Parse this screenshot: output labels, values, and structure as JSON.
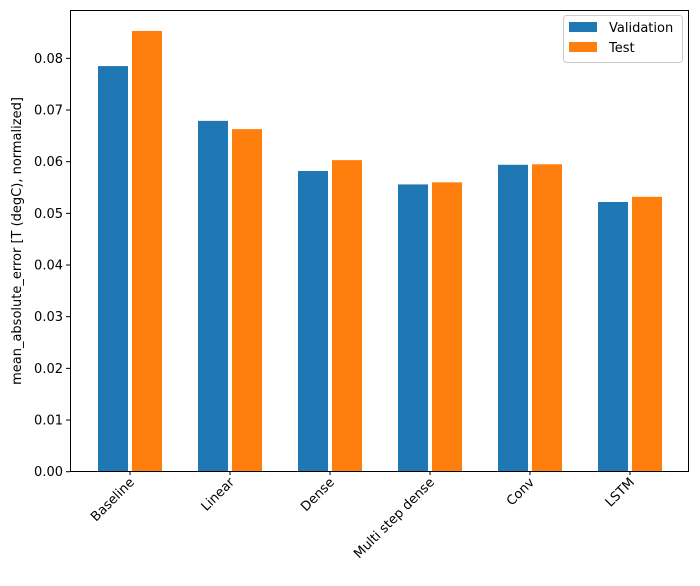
{
  "chart_data": {
    "type": "bar",
    "title": "",
    "xlabel": "",
    "ylabel": "mean_absolute_error [T (degC), normalized]",
    "categories": [
      "Baseline",
      "Linear",
      "Dense",
      "Multi step dense",
      "Conv",
      "LSTM"
    ],
    "series": [
      {
        "name": "Validation",
        "color": "#1f77b4",
        "values": [
          0.0785,
          0.0679,
          0.0582,
          0.0556,
          0.0594,
          0.0522
        ]
      },
      {
        "name": "Test",
        "color": "#ff7f0e",
        "values": [
          0.0853,
          0.0663,
          0.0603,
          0.056,
          0.0595,
          0.0532
        ]
      }
    ],
    "ylim": [
      0,
      0.0895
    ],
    "yticks": [
      "0.00",
      "0.01",
      "0.02",
      "0.03",
      "0.04",
      "0.05",
      "0.06",
      "0.07",
      "0.08"
    ],
    "xtick_rotation": 45,
    "grid": false,
    "legend": "top-right"
  }
}
